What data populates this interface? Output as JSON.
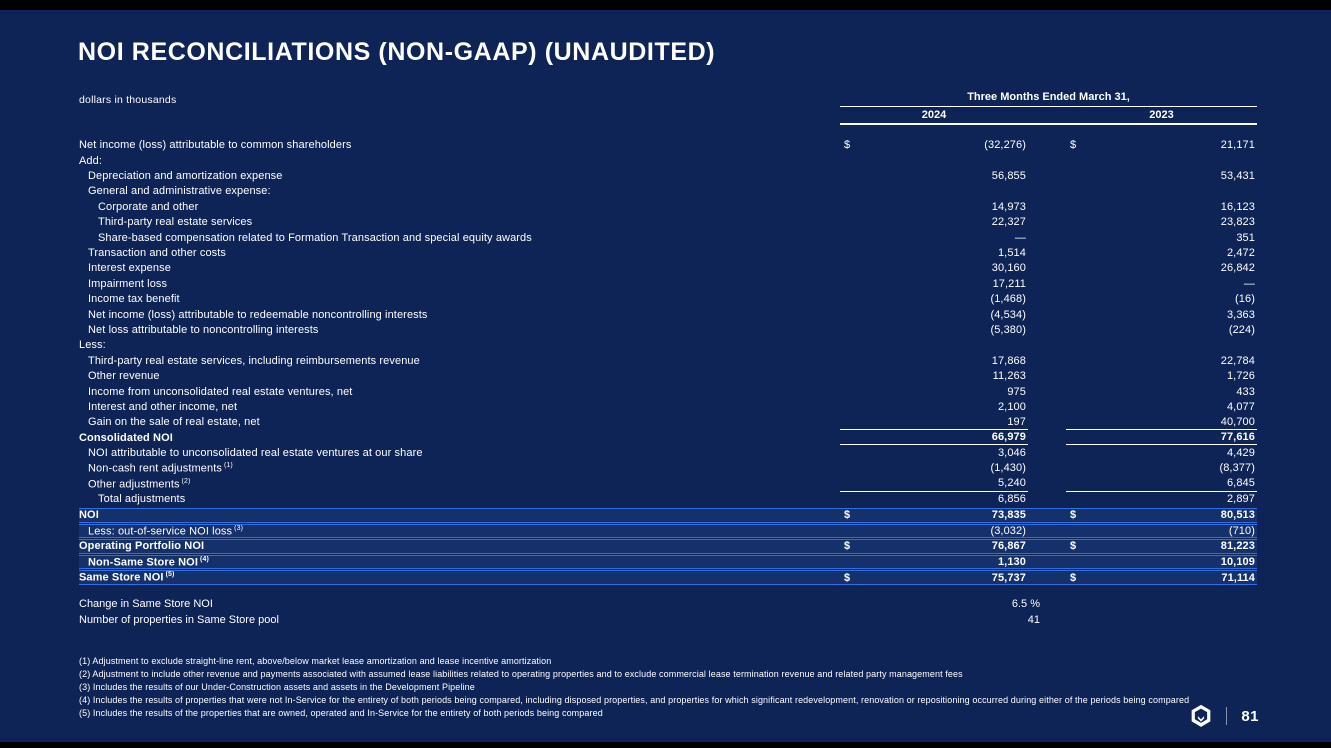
{
  "slide": {
    "title": "NOI RECONCILIATIONS (NON-GAAP) (UNAUDITED)",
    "subtitle": "dollars in thousands",
    "page_number": "81",
    "colors": {
      "background": "#0E2356",
      "band_fill": "#15316B",
      "accent_line": "#2E6FDF",
      "text": "#FFFFFF"
    }
  },
  "table": {
    "header": {
      "period": "Three Months Ended March 31,",
      "col_2024": "2024",
      "col_2023": "2023"
    },
    "rows": [
      {
        "label": "Net income (loss) attributable to common shareholders",
        "indent": 0,
        "d1": "$",
        "v1": "(32,276)",
        "d2": "$",
        "v2": "21,171"
      },
      {
        "label": "Add:",
        "indent": 0
      },
      {
        "label": "Depreciation and amortization expense",
        "indent": 1,
        "v1": "56,855",
        "v2": "53,431"
      },
      {
        "label": "General and administrative expense:",
        "indent": 1
      },
      {
        "label": "Corporate and other",
        "indent": 2,
        "v1": "14,973",
        "v2": "16,123"
      },
      {
        "label": "Third-party real estate services",
        "indent": 2,
        "v1": "22,327",
        "v2": "23,823"
      },
      {
        "label": "Share-based compensation related to Formation Transaction and special equity awards",
        "indent": 2,
        "v1": "—",
        "v2": "351"
      },
      {
        "label": "Transaction and other costs",
        "indent": 1,
        "v1": "1,514",
        "v2": "2,472"
      },
      {
        "label": "Interest expense",
        "indent": 1,
        "v1": "30,160",
        "v2": "26,842"
      },
      {
        "label": "Impairment loss",
        "indent": 1,
        "v1": "17,211",
        "v2": "—"
      },
      {
        "label": "Income tax benefit",
        "indent": 1,
        "v1": "(1,468)",
        "v2": "(16)"
      },
      {
        "label": "Net income (loss) attributable to redeemable noncontrolling interests",
        "indent": 1,
        "v1": "(4,534)",
        "v2": "3,363"
      },
      {
        "label": "Net loss attributable to noncontrolling interests",
        "indent": 1,
        "v1": "(5,380)",
        "v2": "(224)"
      },
      {
        "label": "Less:",
        "indent": 0
      },
      {
        "label": "Third-party real estate services, including reimbursements revenue",
        "indent": 1,
        "v1": "17,868",
        "v2": "22,784"
      },
      {
        "label": "Other revenue",
        "indent": 1,
        "v1": "11,263",
        "v2": "1,726"
      },
      {
        "label": "Income from unconsolidated real estate ventures, net",
        "indent": 1,
        "v1": "975",
        "v2": "433"
      },
      {
        "label": "Interest and other income, net",
        "indent": 1,
        "v1": "2,100",
        "v2": "4,077"
      },
      {
        "label": "Gain on the sale of real estate, net",
        "indent": 1,
        "v1": "197",
        "v2": "40,700",
        "ul": true
      },
      {
        "label": "Consolidated NOI",
        "indent": 0,
        "bold": true,
        "v1": "66,979",
        "v2": "77,616",
        "ul": true
      },
      {
        "label": "NOI attributable to unconsolidated real estate ventures at our share",
        "indent": 1,
        "v1": "3,046",
        "v2": "4,429"
      },
      {
        "label": "Non-cash rent adjustments",
        "sup": "(1)",
        "indent": 1,
        "v1": "(1,430)",
        "v2": "(8,377)"
      },
      {
        "label": "Other adjustments",
        "sup": "(2)",
        "indent": 1,
        "v1": "5,240",
        "v2": "6,845",
        "ul": true
      },
      {
        "label": "Total adjustments",
        "indent": 2,
        "v1": "6,856",
        "v2": "2,897"
      },
      {
        "label": "NOI",
        "indent": 0,
        "bold": true,
        "band": true,
        "d1": "$",
        "v1": "73,835",
        "d2": "$",
        "v2": "80,513"
      },
      {
        "label": "Less: out-of-service NOI loss",
        "sup": "(3)",
        "indent": 1,
        "band": true,
        "v1": "(3,032)",
        "v2": "(710)"
      },
      {
        "label": "Operating Portfolio NOI",
        "indent": 0,
        "bold": true,
        "band": true,
        "d1": "$",
        "v1": "76,867",
        "d2": "$",
        "v2": "81,223"
      },
      {
        "label": "Non-Same Store NOI",
        "sup": "(4)",
        "indent": 1,
        "bold": true,
        "band": true,
        "v1": "1,130",
        "v2": "10,109"
      },
      {
        "label": "Same Store NOI",
        "sup": "(5)",
        "indent": 0,
        "bold": true,
        "band": true,
        "d1": "$",
        "v1": "75,737",
        "d2": "$",
        "v2": "71,114"
      }
    ]
  },
  "stats": [
    {
      "label": "Change in Same Store NOI",
      "value": "6.5 %"
    },
    {
      "label": "Number of properties in Same Store pool",
      "value": "41"
    }
  ],
  "footnotes": [
    "(1) Adjustment to exclude straight-line rent, above/below market lease amortization and lease incentive amortization",
    "(2) Adjustment to include other revenue and payments associated with assumed lease liabilities related to operating properties and to exclude commercial lease termination revenue and related party management fees",
    "(3) Includes the results of our Under-Construction assets and assets in the Development Pipeline",
    "(4) Includes the results of properties that were not In-Service for the entirety of both periods being compared, including disposed properties, and properties for which significant redevelopment, renovation or repositioning occurred during either of the periods being compared",
    "(5) Includes the results of the properties that are owned, operated and In-Service for the entirety of both periods being compared"
  ]
}
